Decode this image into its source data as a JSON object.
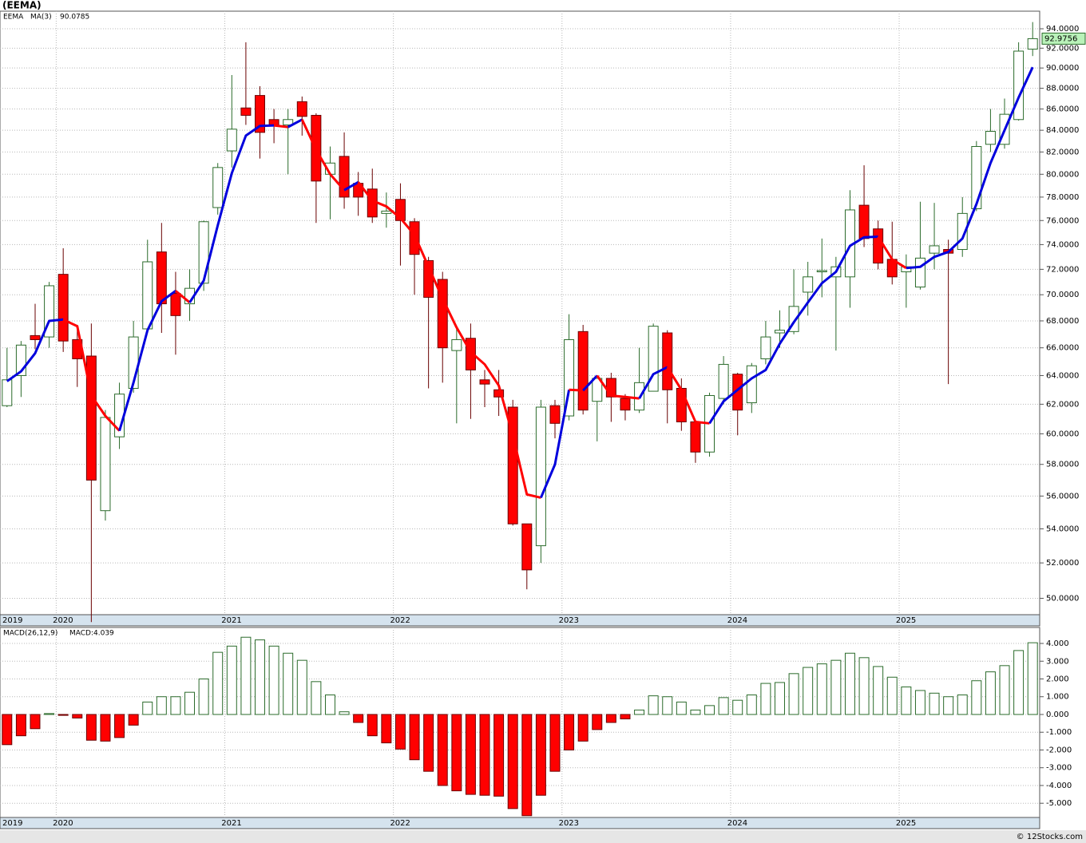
{
  "title": "(EEMA)",
  "footer": "© 12Stocks.com",
  "chart_data": [
    {
      "type": "candlestick",
      "legend": "EEMA",
      "categories": [
        "2019",
        null,
        null,
        null,
        "2020",
        null,
        null,
        null,
        null,
        null,
        null,
        null,
        null,
        null,
        null,
        null,
        "2021",
        null,
        null,
        null,
        null,
        null,
        null,
        null,
        null,
        null,
        null,
        null,
        "2022",
        null,
        null,
        null,
        null,
        null,
        null,
        null,
        null,
        null,
        null,
        null,
        "2023",
        null,
        null,
        null,
        null,
        null,
        null,
        null,
        null,
        null,
        null,
        null,
        "2024",
        null,
        null,
        null,
        null,
        null,
        null,
        null,
        null,
        null,
        null,
        null,
        "2025",
        null,
        null,
        null,
        null,
        null,
        null,
        null,
        null,
        null
      ],
      "open": [
        61.9,
        64.0,
        66.9,
        66.8,
        71.6,
        66.6,
        65.4,
        55.1,
        59.8,
        63.1,
        67.4,
        73.4,
        70.1,
        69.3,
        70.9,
        77.1,
        82.1,
        86.1,
        87.3,
        85.0,
        84.5,
        86.7,
        85.4,
        80.0,
        81.6,
        79.2,
        78.7,
        76.6,
        77.8,
        75.9,
        72.7,
        71.2,
        65.8,
        66.7,
        63.7,
        63.0,
        61.8,
        54.3,
        53.0,
        61.9,
        61.2,
        67.2,
        62.2,
        63.8,
        62.4,
        61.6,
        62.9,
        67.1,
        63.1,
        60.8,
        58.8,
        62.4,
        64.1,
        62.1,
        65.2,
        67.1,
        67.2,
        70.2,
        71.8,
        71.4,
        71.4,
        77.3,
        75.3,
        72.8,
        71.8,
        70.6,
        73.3,
        73.6,
        73.6,
        77.0,
        82.7,
        82.7,
        85.0,
        91.9
      ],
      "high": [
        66.0,
        66.5,
        69.3,
        71.0,
        73.7,
        67.7,
        67.8,
        61.6,
        63.5,
        68.0,
        74.4,
        75.8,
        71.8,
        72.0,
        76.0,
        81.0,
        89.3,
        92.6,
        88.2,
        86.0,
        86.0,
        87.2,
        85.6,
        82.5,
        83.8,
        80.2,
        80.5,
        78.4,
        79.2,
        76.2,
        73.0,
        71.8,
        67.6,
        67.8,
        64.4,
        64.4,
        62.3,
        54.3,
        62.3,
        62.3,
        68.5,
        67.7,
        63.8,
        64.2,
        62.7,
        66.0,
        67.8,
        67.3,
        63.8,
        60.9,
        62.8,
        65.4,
        64.2,
        64.9,
        68.0,
        68.8,
        72.0,
        72.6,
        74.5,
        73.0,
        78.6,
        80.8,
        76.0,
        75.9,
        73.2,
        77.6,
        77.5,
        74.4,
        78.0,
        83.0,
        86.0,
        87.0,
        92.6,
        94.7
      ],
      "low": [
        61.8,
        62.5,
        65.9,
        66.0,
        65.7,
        63.2,
        48.7,
        54.5,
        59.0,
        62.8,
        67.2,
        67.1,
        65.5,
        68.0,
        70.3,
        76.5,
        80.6,
        84.5,
        81.4,
        82.8,
        80.0,
        83.5,
        75.8,
        76.1,
        77.0,
        76.4,
        75.8,
        75.4,
        72.3,
        70.0,
        63.1,
        63.5,
        60.7,
        61.0,
        61.8,
        61.2,
        54.2,
        50.5,
        52.0,
        59.7,
        60.9,
        61.3,
        59.5,
        60.8,
        60.9,
        61.4,
        62.9,
        60.7,
        60.2,
        58.1,
        58.5,
        62.0,
        59.9,
        61.4,
        64.8,
        66.0,
        67.0,
        68.4,
        69.8,
        65.8,
        69.0,
        73.8,
        72.0,
        70.8,
        69.0,
        70.4,
        72.0,
        63.4,
        73.0,
        76.8,
        82.0,
        82.3,
        84.9,
        91.2
      ],
      "close": [
        63.7,
        66.2,
        66.6,
        70.7,
        66.5,
        65.2,
        57.0,
        61.1,
        62.7,
        66.8,
        72.6,
        69.3,
        68.4,
        70.5,
        75.9,
        80.6,
        84.1,
        85.4,
        83.8,
        84.4,
        85.0,
        85.3,
        79.4,
        81.0,
        78.0,
        78.0,
        76.3,
        76.8,
        76.0,
        73.2,
        69.8,
        66.0,
        66.6,
        64.4,
        63.4,
        62.5,
        54.3,
        51.6,
        61.8,
        60.7,
        66.6,
        61.6,
        63.8,
        62.5,
        61.6,
        63.5,
        67.6,
        63.0,
        60.8,
        58.8,
        62.6,
        64.8,
        61.6,
        64.7,
        66.8,
        67.3,
        69.1,
        71.4,
        71.9,
        72.2,
        76.9,
        74.5,
        72.5,
        71.4,
        72.2,
        72.9,
        73.9,
        73.3,
        76.6,
        82.5,
        83.9,
        85.5,
        91.7,
        92.9756
      ],
      "up_color": "#ffffff",
      "up_edge": "#2b6b2b",
      "down_color": "#ff0000",
      "down_edge": "#6a0000",
      "last_color": "#b9f2b9",
      "series": [
        {
          "name": "MA(3)",
          "up_color": "#0000dd",
          "down_color": "#ff0000",
          "values": [
            63.6,
            64.3,
            65.6,
            68.0,
            68.1,
            67.6,
            62.6,
            61.2,
            60.2,
            63.5,
            67.3,
            69.5,
            70.3,
            69.4,
            71.1,
            75.6,
            80.1,
            83.5,
            84.4,
            84.45,
            84.3,
            85.0,
            82.2,
            80.0,
            78.6,
            79.3,
            77.7,
            77.2,
            76.2,
            74.8,
            72.2,
            69.7,
            67.5,
            65.7,
            64.8,
            63.3,
            59.9,
            56.1,
            55.9,
            58.0,
            63.0,
            62.95,
            64.0,
            62.6,
            62.5,
            62.4,
            64.1,
            64.6,
            63.0,
            60.8,
            60.7,
            62.2,
            63.0,
            63.8,
            64.4,
            66.3,
            67.9,
            69.4,
            70.9,
            71.8,
            73.9,
            74.6,
            74.65,
            72.8,
            72.1,
            72.2,
            73.0,
            73.4,
            74.5,
            77.4,
            81.0,
            84.0,
            87.1,
            90.0785
          ]
        }
      ],
      "yscale": "log",
      "ylim": [
        49.1,
        95.85
      ],
      "grid": true,
      "yticks": [
        {
          "value": 50,
          "label": "50.0000"
        },
        {
          "value": 52,
          "label": "52.0000"
        },
        {
          "value": 54,
          "label": "54.0000"
        },
        {
          "value": 56,
          "label": "56.0000"
        },
        {
          "value": 58,
          "label": "58.0000"
        },
        {
          "value": 60,
          "label": "60.0000"
        },
        {
          "value": 62,
          "label": "62.0000"
        },
        {
          "value": 64,
          "label": "64.0000"
        },
        {
          "value": 66,
          "label": "66.0000"
        },
        {
          "value": 68,
          "label": "68.0000"
        },
        {
          "value": 70,
          "label": "70.0000"
        },
        {
          "value": 72,
          "label": "72.0000"
        },
        {
          "value": 74,
          "label": "74.0000"
        },
        {
          "value": 76,
          "label": "76.0000"
        },
        {
          "value": 78,
          "label": "78.0000"
        },
        {
          "value": 80,
          "label": "80.0000"
        },
        {
          "value": 82,
          "label": "82.0000"
        },
        {
          "value": 84,
          "label": "84.0000"
        },
        {
          "value": 86,
          "label": "86.0000"
        },
        {
          "value": 88,
          "label": "88.0000"
        },
        {
          "value": 90,
          "label": "90.0000"
        },
        {
          "value": 92,
          "label": "92.0000"
        },
        {
          "value": 94,
          "label": "94.0000"
        }
      ]
    },
    {
      "type": "bar",
      "title": "MACD(26,12,9)",
      "current_label": "MACD:4.039",
      "categories": [
        "2019",
        null,
        null,
        null,
        "2020",
        null,
        null,
        null,
        null,
        null,
        null,
        null,
        null,
        null,
        null,
        null,
        "2021",
        null,
        null,
        null,
        null,
        null,
        null,
        null,
        null,
        null,
        null,
        null,
        "2022",
        null,
        null,
        null,
        null,
        null,
        null,
        null,
        null,
        null,
        null,
        null,
        "2023",
        null,
        null,
        null,
        null,
        null,
        null,
        null,
        null,
        null,
        null,
        null,
        "2024",
        null,
        null,
        null,
        null,
        null,
        null,
        null,
        null,
        null,
        null,
        null,
        "2025",
        null,
        null,
        null,
        null,
        null,
        null,
        null,
        null,
        null
      ],
      "values": [
        -1.7,
        -1.2,
        -0.8,
        0.05,
        -0.05,
        -0.2,
        -1.45,
        -1.5,
        -1.3,
        -0.6,
        0.7,
        1.0,
        1.0,
        1.25,
        2.0,
        3.5,
        3.85,
        4.35,
        4.2,
        3.85,
        3.45,
        3.05,
        1.85,
        1.1,
        0.15,
        -0.45,
        -1.2,
        -1.6,
        -1.95,
        -2.55,
        -3.2,
        -4.0,
        -4.3,
        -4.5,
        -4.55,
        -4.6,
        -5.3,
        -5.7,
        -4.55,
        -3.2,
        -2.0,
        -1.5,
        -0.85,
        -0.45,
        -0.25,
        0.25,
        1.05,
        1.0,
        0.7,
        0.25,
        0.5,
        0.95,
        0.8,
        1.1,
        1.75,
        1.8,
        2.3,
        2.65,
        2.85,
        3.05,
        3.45,
        3.2,
        2.7,
        2.1,
        1.55,
        1.35,
        1.2,
        1.0,
        1.1,
        1.9,
        2.4,
        2.75,
        3.6,
        4.039
      ],
      "pos_color": "#ffffff",
      "pos_edge": "#2b6b2b",
      "neg_color": "#ff0000",
      "neg_edge": "#6a0000",
      "ylim": [
        -5.8,
        4.9
      ],
      "grid": true,
      "yticks": [
        {
          "value": -5,
          "label": "-5.000"
        },
        {
          "value": -4,
          "label": "-4.000"
        },
        {
          "value": -3,
          "label": "-3.000"
        },
        {
          "value": -2,
          "label": "-2.000"
        },
        {
          "value": -1,
          "label": "-1.000"
        },
        {
          "value": 0,
          "label": "0.000"
        },
        {
          "value": 1,
          "label": "1.000"
        },
        {
          "value": 2,
          "label": "2.000"
        },
        {
          "value": 3,
          "label": "3.000"
        },
        {
          "value": 4,
          "label": "4.000"
        }
      ]
    }
  ]
}
